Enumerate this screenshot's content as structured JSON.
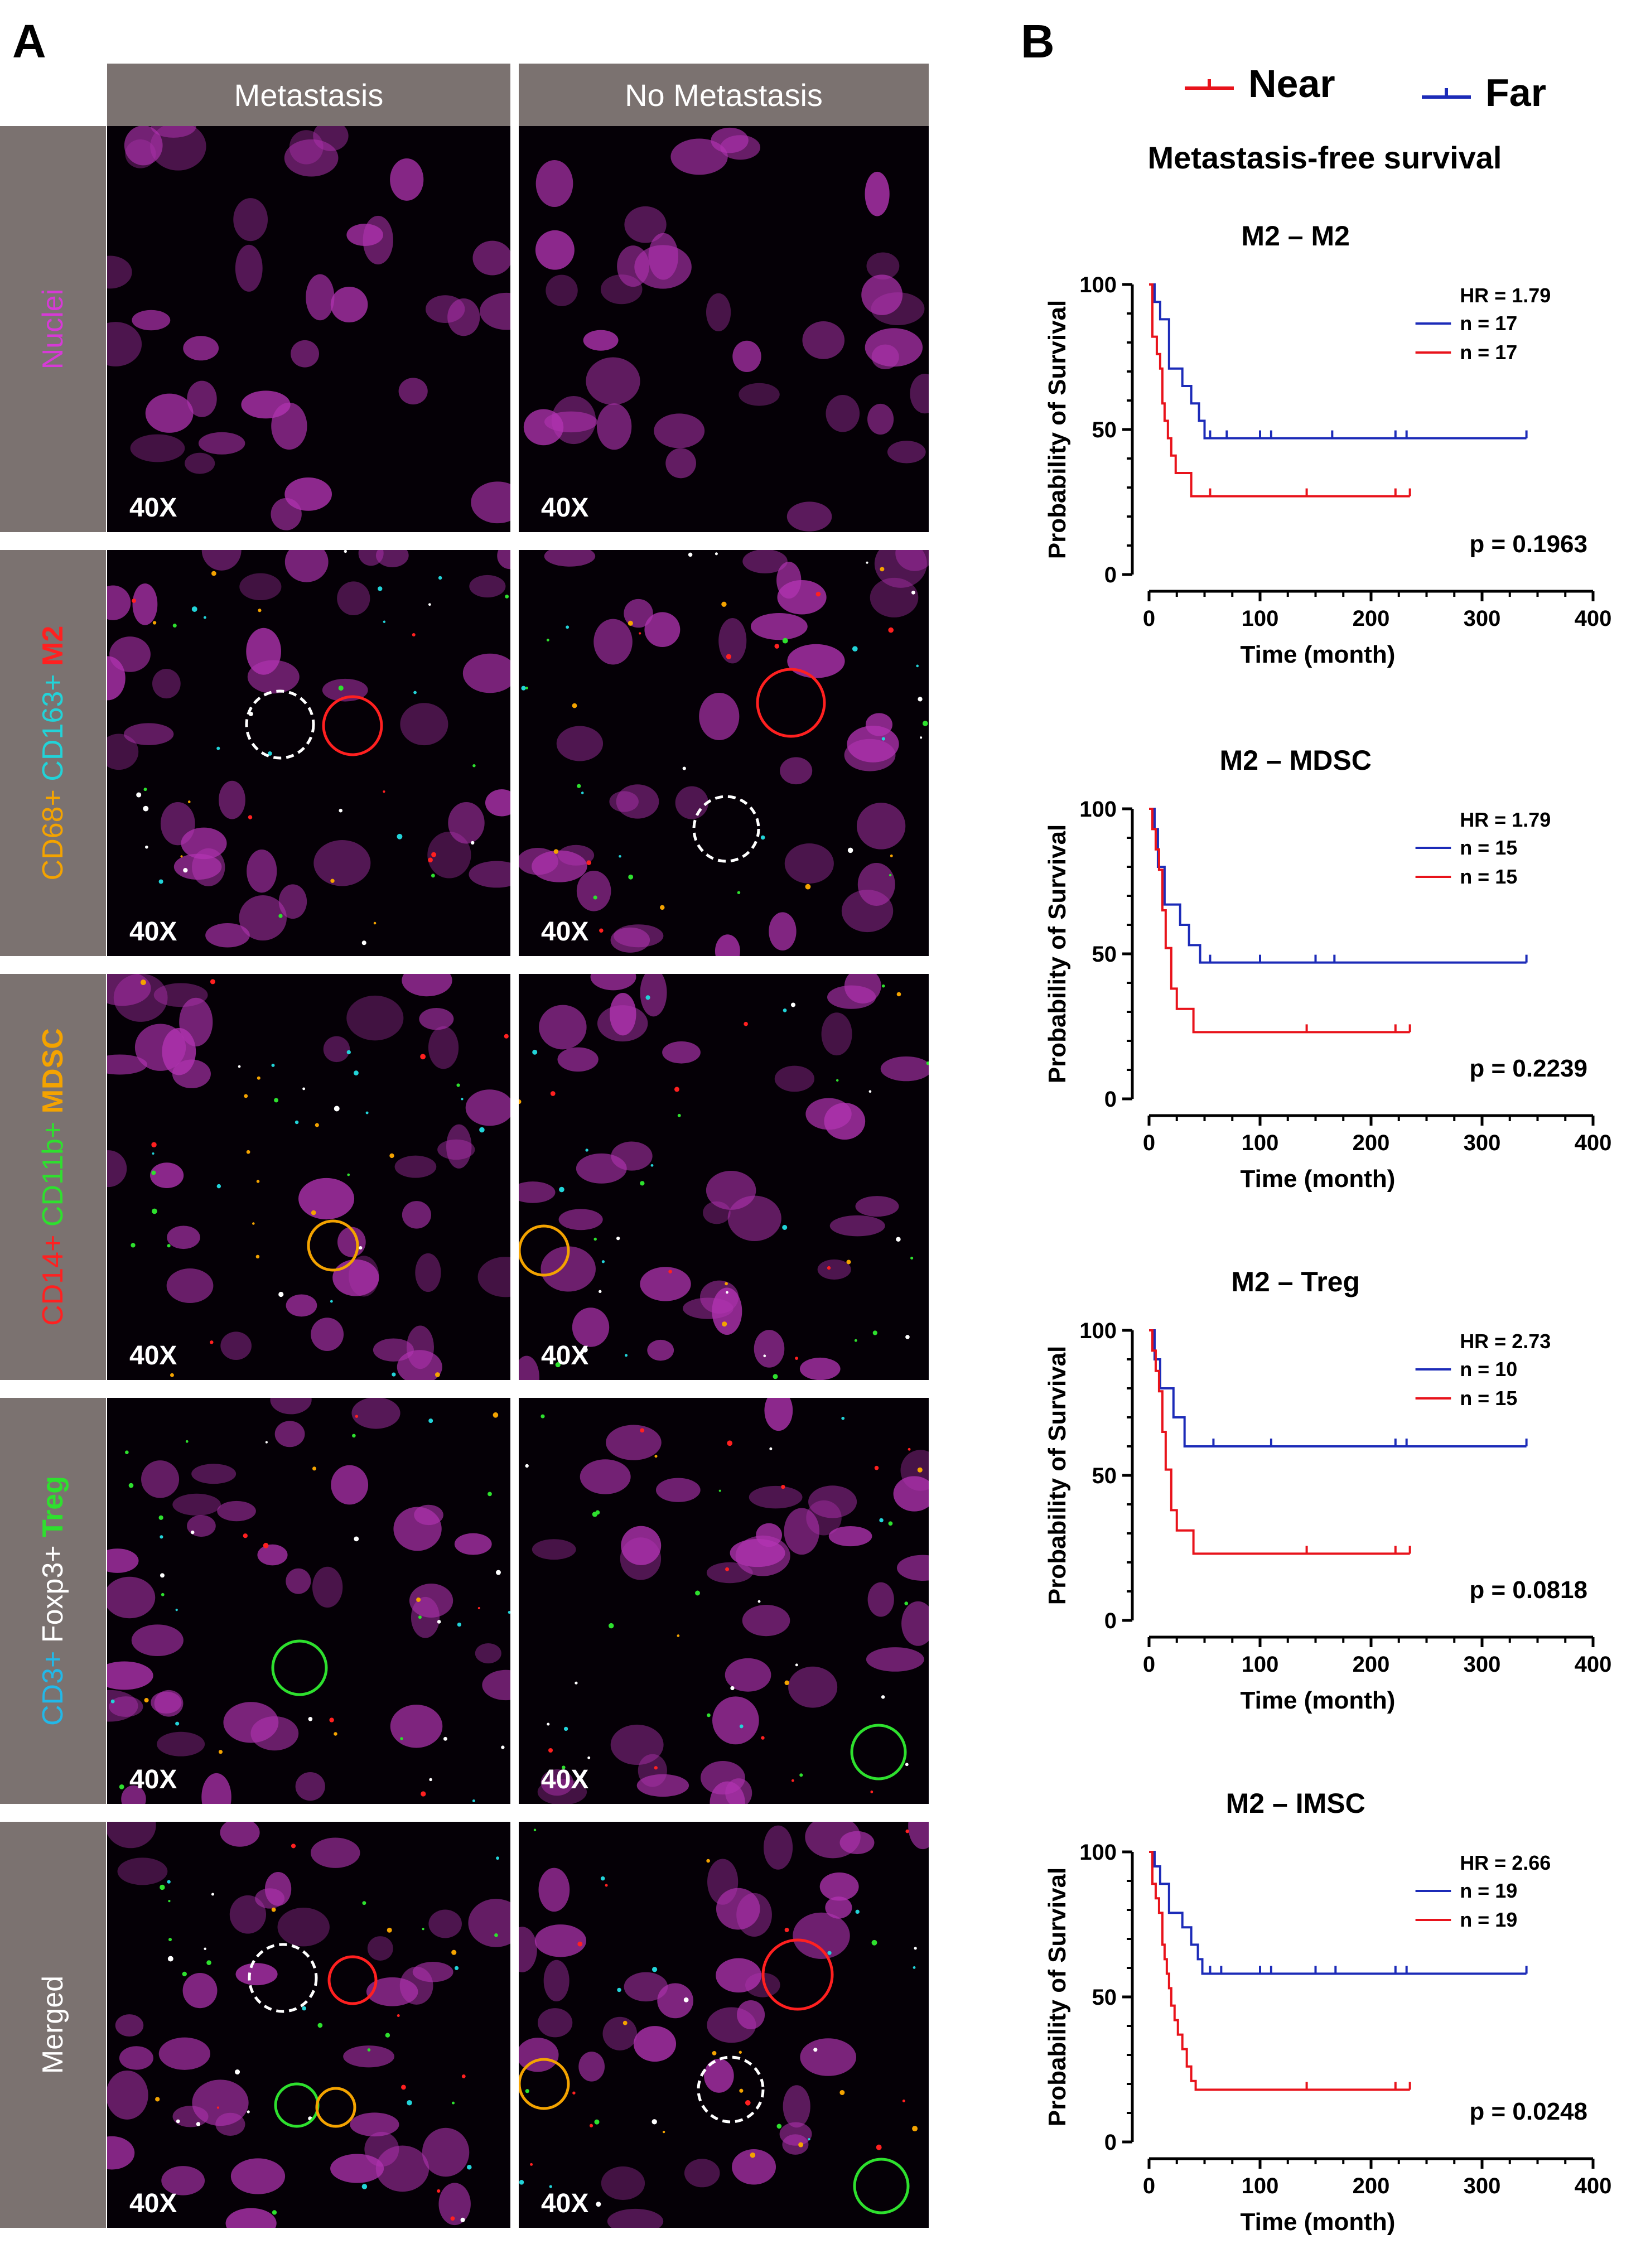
{
  "figure": {
    "panel_a_label": "A",
    "panel_b_label": "B",
    "columns": [
      "Metastasis",
      "No Metastasis"
    ],
    "magnification": "40X",
    "rows": [
      {
        "key": "nuclei",
        "label_parts": [
          {
            "text": "Nuclei",
            "color": "#d63ad6",
            "bold": false
          }
        ]
      },
      {
        "key": "m2",
        "label_parts": [
          {
            "text": "CD68+ ",
            "color": "#f4a300",
            "bold": false
          },
          {
            "text": "CD163+ ",
            "color": "#22d3d8",
            "bold": false
          },
          {
            "text": "M2",
            "color": "#ff2020",
            "bold": true
          }
        ]
      },
      {
        "key": "mdsc",
        "label_parts": [
          {
            "text": "CD14+ ",
            "color": "#ff2020",
            "bold": false
          },
          {
            "text": "CD11b+ ",
            "color": "#2ee02e",
            "bold": false
          },
          {
            "text": "MDSC",
            "color": "#f4a300",
            "bold": true
          }
        ]
      },
      {
        "key": "treg",
        "label_parts": [
          {
            "text": "CD3+ ",
            "color": "#22b8e8",
            "bold": false
          },
          {
            "text": "Foxp3+ ",
            "color": "#ffffff",
            "bold": false
          },
          {
            "text": "Treg",
            "color": "#2ee02e",
            "bold": true
          }
        ]
      },
      {
        "key": "merged",
        "label_parts": [
          {
            "text": "Merged",
            "color": "#ffffff",
            "bold": false
          }
        ]
      }
    ],
    "colors": {
      "near": "#e8131b",
      "far": "#1c2bb8",
      "magenta": "#b233b2"
    }
  },
  "legend": {
    "near": "Near",
    "far": "Far"
  },
  "section_title": "Metastasis-free survival",
  "chart_data": [
    {
      "type": "line",
      "title": "M2 – M2",
      "xlabel": "Time (month)",
      "ylabel": "Probability of Survival",
      "xlim": [
        0,
        400
      ],
      "ylim": [
        0,
        100
      ],
      "xticks": [
        0,
        100,
        200,
        300,
        400
      ],
      "yticks": [
        0,
        50,
        100
      ],
      "hr_text": "HR = 1.79",
      "p_text": "p = 0.1963",
      "series": [
        {
          "name": "Far",
          "n_text": "n = 17",
          "color": "#1c2bb8",
          "steps": [
            [
              0,
              100
            ],
            [
              5,
              94
            ],
            [
              10,
              88
            ],
            [
              18,
              71
            ],
            [
              30,
              65
            ],
            [
              38,
              59
            ],
            [
              45,
              53
            ],
            [
              50,
              47
            ],
            [
              340,
              47
            ]
          ],
          "censors": [
            55,
            70,
            100,
            110,
            165,
            222,
            232,
            340
          ]
        },
        {
          "name": "Near",
          "n_text": "n = 17",
          "color": "#e8131b",
          "steps": [
            [
              0,
              100
            ],
            [
              3,
              82
            ],
            [
              7,
              76
            ],
            [
              10,
              71
            ],
            [
              12,
              59
            ],
            [
              14,
              53
            ],
            [
              17,
              47
            ],
            [
              20,
              41
            ],
            [
              24,
              35
            ],
            [
              38,
              27
            ],
            [
              235,
              27
            ]
          ],
          "censors": [
            55,
            142,
            222,
            235
          ]
        }
      ]
    },
    {
      "type": "line",
      "title": "M2 – MDSC",
      "xlabel": "Time (month)",
      "ylabel": "Probability of Survival",
      "xlim": [
        0,
        400
      ],
      "ylim": [
        0,
        100
      ],
      "xticks": [
        0,
        100,
        200,
        300,
        400
      ],
      "yticks": [
        0,
        50,
        100
      ],
      "hr_text": "HR = 1.79",
      "p_text": "p = 0.2239",
      "series": [
        {
          "name": "Far",
          "n_text": "n = 15",
          "color": "#1c2bb8",
          "steps": [
            [
              0,
              100
            ],
            [
              5,
              93
            ],
            [
              8,
              80
            ],
            [
              14,
              67
            ],
            [
              28,
              60
            ],
            [
              36,
              53
            ],
            [
              46,
              47
            ],
            [
              340,
              47
            ]
          ],
          "censors": [
            55,
            100,
            150,
            167,
            340
          ]
        },
        {
          "name": "Near",
          "n_text": "n = 15",
          "color": "#e8131b",
          "steps": [
            [
              0,
              100
            ],
            [
              3,
              93
            ],
            [
              6,
              86
            ],
            [
              9,
              79
            ],
            [
              12,
              65
            ],
            [
              15,
              52
            ],
            [
              20,
              38
            ],
            [
              25,
              31
            ],
            [
              40,
              23
            ],
            [
              235,
              23
            ]
          ],
          "censors": [
            142,
            222,
            235
          ]
        }
      ]
    },
    {
      "type": "line",
      "title": "M2 – Treg",
      "xlabel": "Time (month)",
      "ylabel": "Probability of Survival",
      "xlim": [
        0,
        400
      ],
      "ylim": [
        0,
        100
      ],
      "xticks": [
        0,
        100,
        200,
        300,
        400
      ],
      "yticks": [
        0,
        50,
        100
      ],
      "hr_text": "HR = 2.73",
      "p_text": "p = 0.0818",
      "series": [
        {
          "name": "Far",
          "n_text": "n = 10",
          "color": "#1c2bb8",
          "steps": [
            [
              0,
              100
            ],
            [
              5,
              90
            ],
            [
              10,
              80
            ],
            [
              22,
              70
            ],
            [
              32,
              60
            ],
            [
              340,
              60
            ]
          ],
          "censors": [
            58,
            110,
            222,
            232,
            340
          ]
        },
        {
          "name": "Near",
          "n_text": "n = 15",
          "color": "#e8131b",
          "steps": [
            [
              0,
              100
            ],
            [
              3,
              93
            ],
            [
              6,
              86
            ],
            [
              9,
              79
            ],
            [
              12,
              65
            ],
            [
              15,
              52
            ],
            [
              20,
              38
            ],
            [
              25,
              31
            ],
            [
              40,
              23
            ],
            [
              235,
              23
            ]
          ],
          "censors": [
            142,
            222,
            235
          ]
        }
      ]
    },
    {
      "type": "line",
      "title": "M2 – IMSC",
      "xlabel": "Time (month)",
      "ylabel": "Probability of Survival",
      "xlim": [
        0,
        400
      ],
      "ylim": [
        0,
        100
      ],
      "xticks": [
        0,
        100,
        200,
        300,
        400
      ],
      "yticks": [
        0,
        50,
        100
      ],
      "hr_text": "HR = 2.66",
      "p_text": "p = 0.0248",
      "series": [
        {
          "name": "Far",
          "n_text": "n = 19",
          "color": "#1c2bb8",
          "steps": [
            [
              0,
              100
            ],
            [
              5,
              95
            ],
            [
              10,
              89
            ],
            [
              18,
              79
            ],
            [
              30,
              74
            ],
            [
              38,
              68
            ],
            [
              44,
              63
            ],
            [
              48,
              58
            ],
            [
              340,
              58
            ]
          ],
          "censors": [
            55,
            65,
            100,
            110,
            150,
            168,
            222,
            232,
            340
          ]
        },
        {
          "name": "Near",
          "n_text": "n = 19",
          "color": "#e8131b",
          "steps": [
            [
              0,
              100
            ],
            [
              3,
              89
            ],
            [
              6,
              84
            ],
            [
              9,
              79
            ],
            [
              12,
              68
            ],
            [
              14,
              63
            ],
            [
              16,
              58
            ],
            [
              18,
              53
            ],
            [
              20,
              47
            ],
            [
              23,
              42
            ],
            [
              26,
              37
            ],
            [
              30,
              32
            ],
            [
              34,
              26
            ],
            [
              38,
              21
            ],
            [
              42,
              18
            ],
            [
              235,
              18
            ]
          ],
          "censors": [
            142,
            222,
            235
          ]
        }
      ]
    }
  ]
}
